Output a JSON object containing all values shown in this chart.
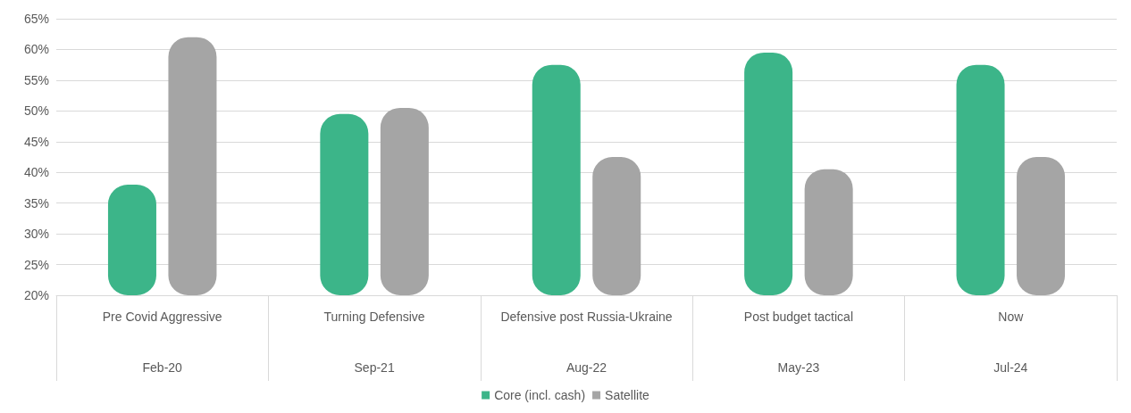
{
  "chart_data": {
    "type": "bar",
    "categories": [
      "Pre Covid Aggressive\nFeb-20",
      "Turning Defensive\nSep-21",
      "Defensive post Russia-Ukraine\nAug-22",
      "Post budget tactical\nMay-23",
      "Now\nJul-24"
    ],
    "series": [
      {
        "name": "Core (incl. cash)",
        "color": "#3cb589",
        "values": [
          38,
          49.5,
          57.5,
          59.5,
          57.5
        ]
      },
      {
        "name": "Satellite",
        "color": "#a5a5a5",
        "values": [
          62,
          50.5,
          42.5,
          40.5,
          42.5
        ]
      }
    ],
    "ylim": [
      20,
      65
    ],
    "yticks": [
      {
        "value": 20,
        "label": "20%"
      },
      {
        "value": 25,
        "label": "25%"
      },
      {
        "value": 30,
        "label": "30%"
      },
      {
        "value": 35,
        "label": "35%"
      },
      {
        "value": 40,
        "label": "40%"
      },
      {
        "value": 45,
        "label": "45%"
      },
      {
        "value": 50,
        "label": "50%"
      },
      {
        "value": 55,
        "label": "55%"
      },
      {
        "value": 60,
        "label": "60%"
      },
      {
        "value": 65,
        "label": "65%"
      }
    ],
    "grid": "y",
    "legend": "bottom"
  }
}
